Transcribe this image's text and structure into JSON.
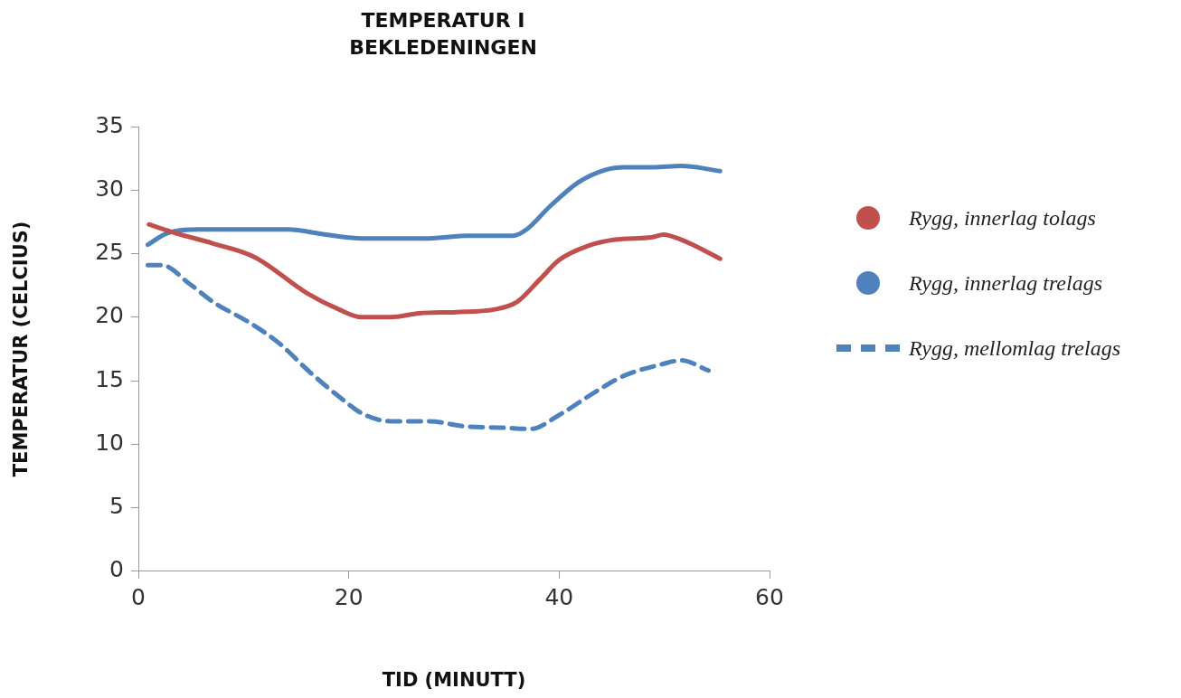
{
  "chart_data": {
    "type": "line",
    "title": "TEMPERATUR I BEKLEDENINGEN",
    "xlabel": "TID (MINUTT)",
    "ylabel": "TEMPERATUR (CELCIUS)",
    "xlim": [
      0,
      60
    ],
    "xticks": [
      0,
      20,
      40,
      60
    ],
    "ylim": [
      0,
      35
    ],
    "yticks": [
      0,
      5,
      10,
      15,
      20,
      25,
      30,
      35
    ],
    "grid": false,
    "legend": "right",
    "marker": "none",
    "series": [
      {
        "name": "Rygg, innerlag tolags",
        "color": "#c0504d",
        "line_style": "solid",
        "x": [
          1,
          3.6,
          7.1,
          11.1,
          16,
          19.1,
          21.2,
          24,
          26.7,
          30.2,
          33.8,
          36,
          38.2,
          40,
          42.7,
          45.3,
          48.9,
          49.9,
          51.6,
          55.3
        ],
        "values": [
          27.3,
          26.6,
          25.8,
          24.7,
          21.9,
          20.6,
          20,
          20,
          20.3,
          20.4,
          20.6,
          21.2,
          23,
          24.5,
          25.6,
          26.1,
          26.3,
          26.5,
          26.1,
          24.6
        ]
      },
      {
        "name": "Rygg, innerlag trelags",
        "color": "#4f81bd",
        "line_style": "solid",
        "x": [
          0.9,
          2.7,
          5.8,
          11.6,
          14.2,
          17.8,
          21.3,
          27.6,
          31.1,
          35.6,
          36.9,
          39.1,
          41.8,
          44.4,
          46.2,
          48.9,
          51.6,
          55.3
        ],
        "values": [
          25.7,
          26.6,
          26.9,
          26.9,
          26.9,
          26.5,
          26.2,
          26.2,
          26.4,
          26.4,
          26.9,
          28.7,
          30.6,
          31.6,
          31.8,
          31.8,
          31.9,
          31.5
        ]
      },
      {
        "name": "Rygg, mellomlag trelags",
        "color": "#4f81bd",
        "line_style": "dashed",
        "x": [
          0.9,
          2.2,
          4.9,
          7.1,
          10.7,
          13.3,
          16.4,
          19.6,
          21.3,
          24,
          27.6,
          31.1,
          34.7,
          37.3,
          40,
          43.6,
          46.2,
          49.8,
          51.6,
          54.2
        ],
        "values": [
          24.1,
          24.1,
          22.6,
          21.2,
          19.5,
          18,
          15.6,
          13.4,
          12.4,
          11.8,
          11.8,
          11.4,
          11.3,
          11.2,
          12.3,
          14.2,
          15.4,
          16.3,
          16.6,
          15.8
        ]
      }
    ]
  }
}
